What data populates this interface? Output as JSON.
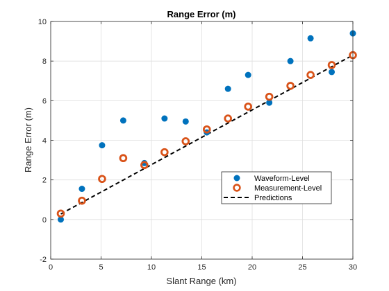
{
  "chart_data": {
    "type": "scatter",
    "title": "Range Error (m)",
    "xlabel": "Slant Range (km)",
    "ylabel": "Range Error (m)",
    "xlim": [
      0,
      30
    ],
    "ylim": [
      -2,
      10
    ],
    "x_ticks": [
      "0",
      "5",
      "10",
      "15",
      "20",
      "25",
      "30"
    ],
    "y_ticks": [
      "-2",
      "0",
      "2",
      "4",
      "6",
      "8",
      "10"
    ],
    "grid": true,
    "legend_position": "lower-right",
    "series": [
      {
        "name": "Waveform-Level",
        "kind": "filled-marker",
        "color": "#0072BD",
        "x": [
          1.0,
          3.1,
          5.1,
          7.2,
          9.3,
          11.3,
          13.4,
          15.5,
          17.6,
          19.6,
          21.7,
          23.8,
          25.8,
          27.9,
          30.0
        ],
        "y": [
          0.0,
          1.55,
          3.75,
          5.0,
          2.85,
          5.1,
          4.95,
          4.4,
          6.6,
          7.3,
          5.9,
          8.0,
          9.15,
          7.45,
          9.4
        ]
      },
      {
        "name": "Measurement-Level",
        "kind": "open-marker",
        "color": "#D95319",
        "x": [
          1.0,
          3.1,
          5.1,
          7.2,
          9.3,
          11.3,
          13.4,
          15.5,
          17.6,
          19.6,
          21.7,
          23.8,
          25.8,
          27.9,
          30.0
        ],
        "y": [
          0.3,
          0.95,
          2.05,
          3.1,
          2.75,
          3.4,
          3.95,
          4.55,
          5.1,
          5.7,
          6.2,
          6.75,
          7.3,
          7.8,
          8.3
        ]
      },
      {
        "name": "Predictions",
        "kind": "dashed-line",
        "color": "#000000",
        "x": [
          1.0,
          30.0
        ],
        "y": [
          0.28,
          8.3
        ]
      }
    ]
  }
}
